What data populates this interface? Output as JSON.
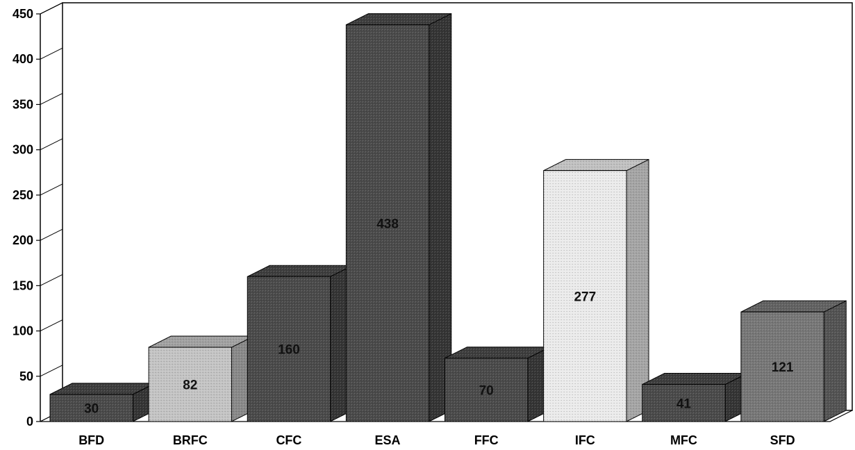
{
  "chart_data": {
    "type": "bar",
    "categories": [
      "BFD",
      "BRFC",
      "CFC",
      "ESA",
      "FFC",
      "IFC",
      "MFC",
      "SFD"
    ],
    "values": [
      30,
      82,
      160,
      438,
      70,
      277,
      41,
      121
    ],
    "data_labels": [
      "30",
      "82",
      "160",
      "438",
      "70",
      "277",
      "41",
      "121"
    ],
    "title": "",
    "xlabel": "",
    "ylabel": "",
    "ylim": [
      0,
      450
    ],
    "yticks": [
      "0",
      "50",
      "100",
      "150",
      "200",
      "250",
      "300",
      "350",
      "400",
      "450"
    ],
    "grid": true,
    "legend": "none",
    "bar_colors": [
      "#4a4a4a",
      "#c4c4c4",
      "#4a4a4a",
      "#4a4a4a",
      "#4a4a4a",
      "#ebebeb",
      "#4a4a4a",
      "#777777"
    ]
  }
}
